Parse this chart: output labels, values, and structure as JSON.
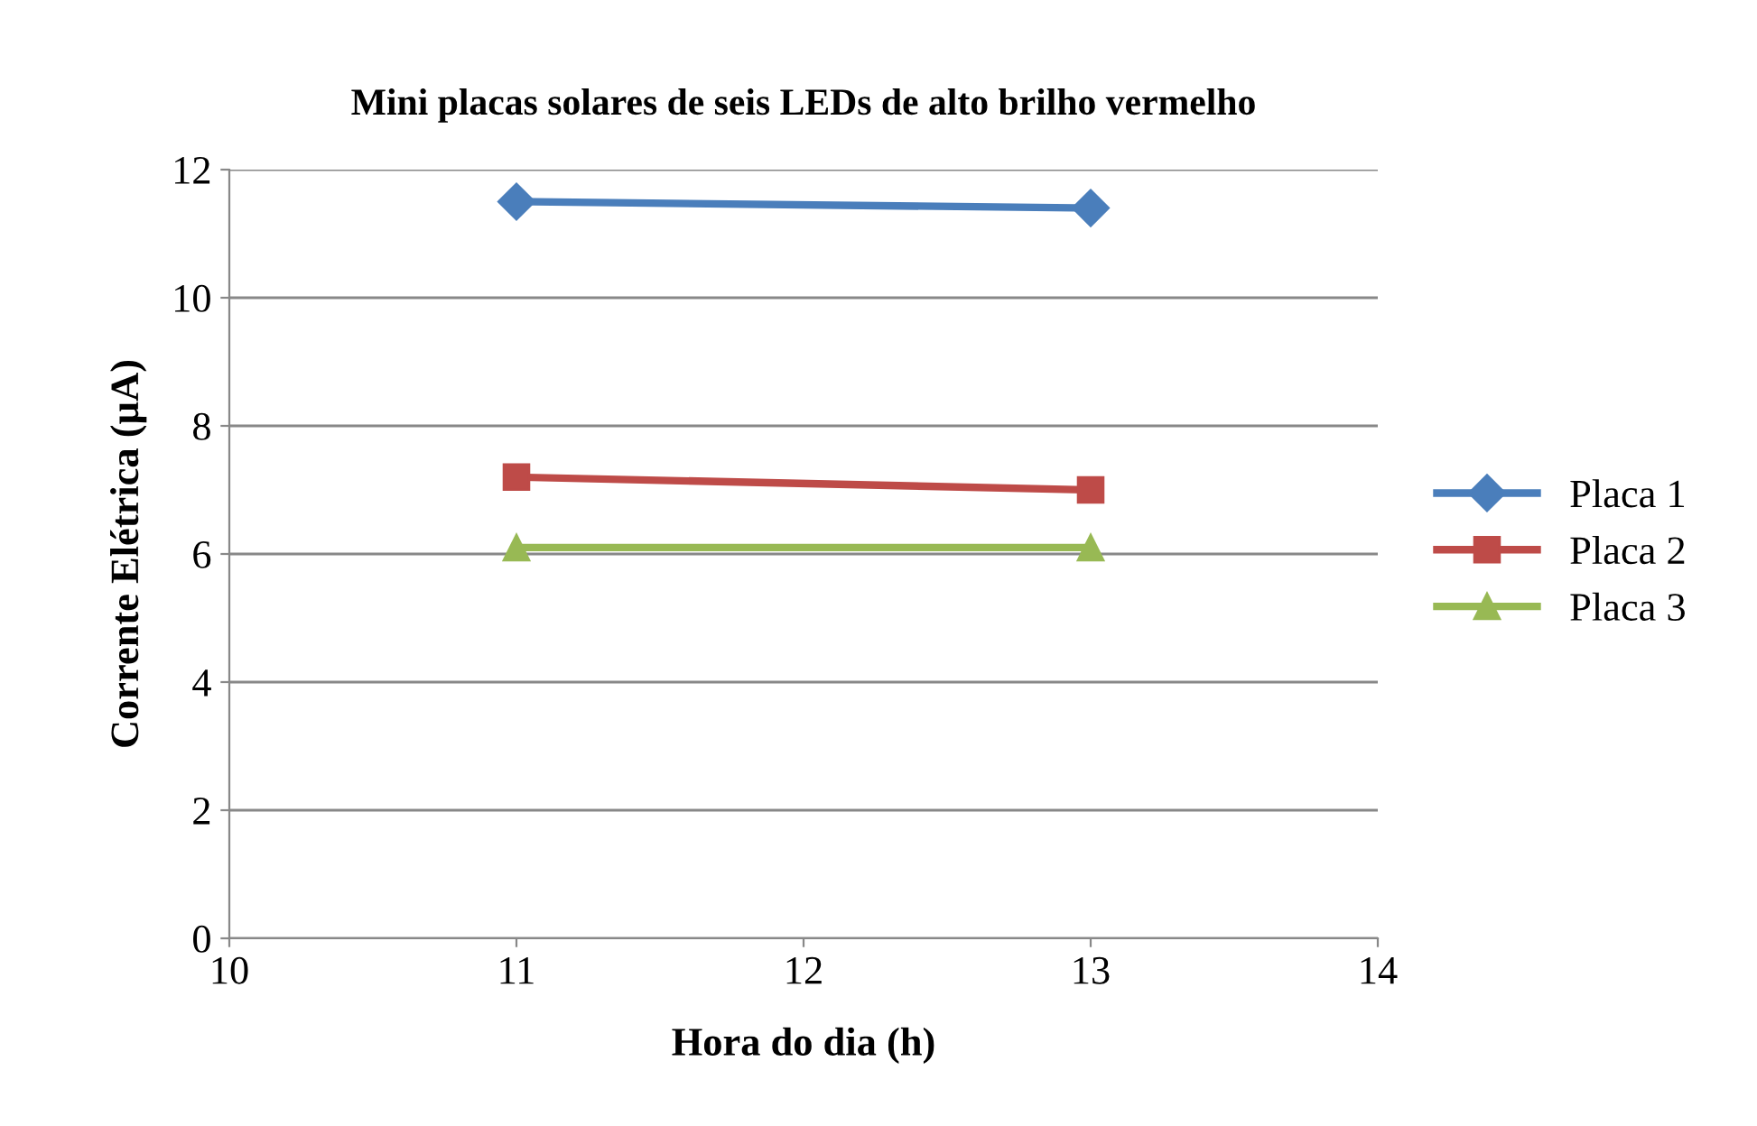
{
  "chart_data": {
    "type": "line",
    "title": "Mini placas solares de seis LEDs de alto brilho vermelho",
    "xlabel": "Hora do dia (h)",
    "ylabel": "Corrente Elétrica (µA)",
    "x": [
      11,
      13
    ],
    "series": [
      {
        "name": "Placa 1",
        "color": "#4a7ebb",
        "marker": "diamond",
        "values": [
          11.5,
          11.4
        ]
      },
      {
        "name": "Placa 2",
        "color": "#be4b48",
        "marker": "square",
        "values": [
          7.2,
          7.0
        ]
      },
      {
        "name": "Placa 3",
        "color": "#98b954",
        "marker": "triangle",
        "values": [
          6.1,
          6.1
        ]
      }
    ],
    "xlim": [
      10,
      14
    ],
    "xticks": [
      10,
      11,
      12,
      13,
      14
    ],
    "ylim": [
      0,
      12
    ],
    "yticks": [
      0,
      2,
      4,
      6,
      8,
      10,
      12
    ],
    "grid": "y",
    "legend": "right",
    "line_style": "solid"
  }
}
